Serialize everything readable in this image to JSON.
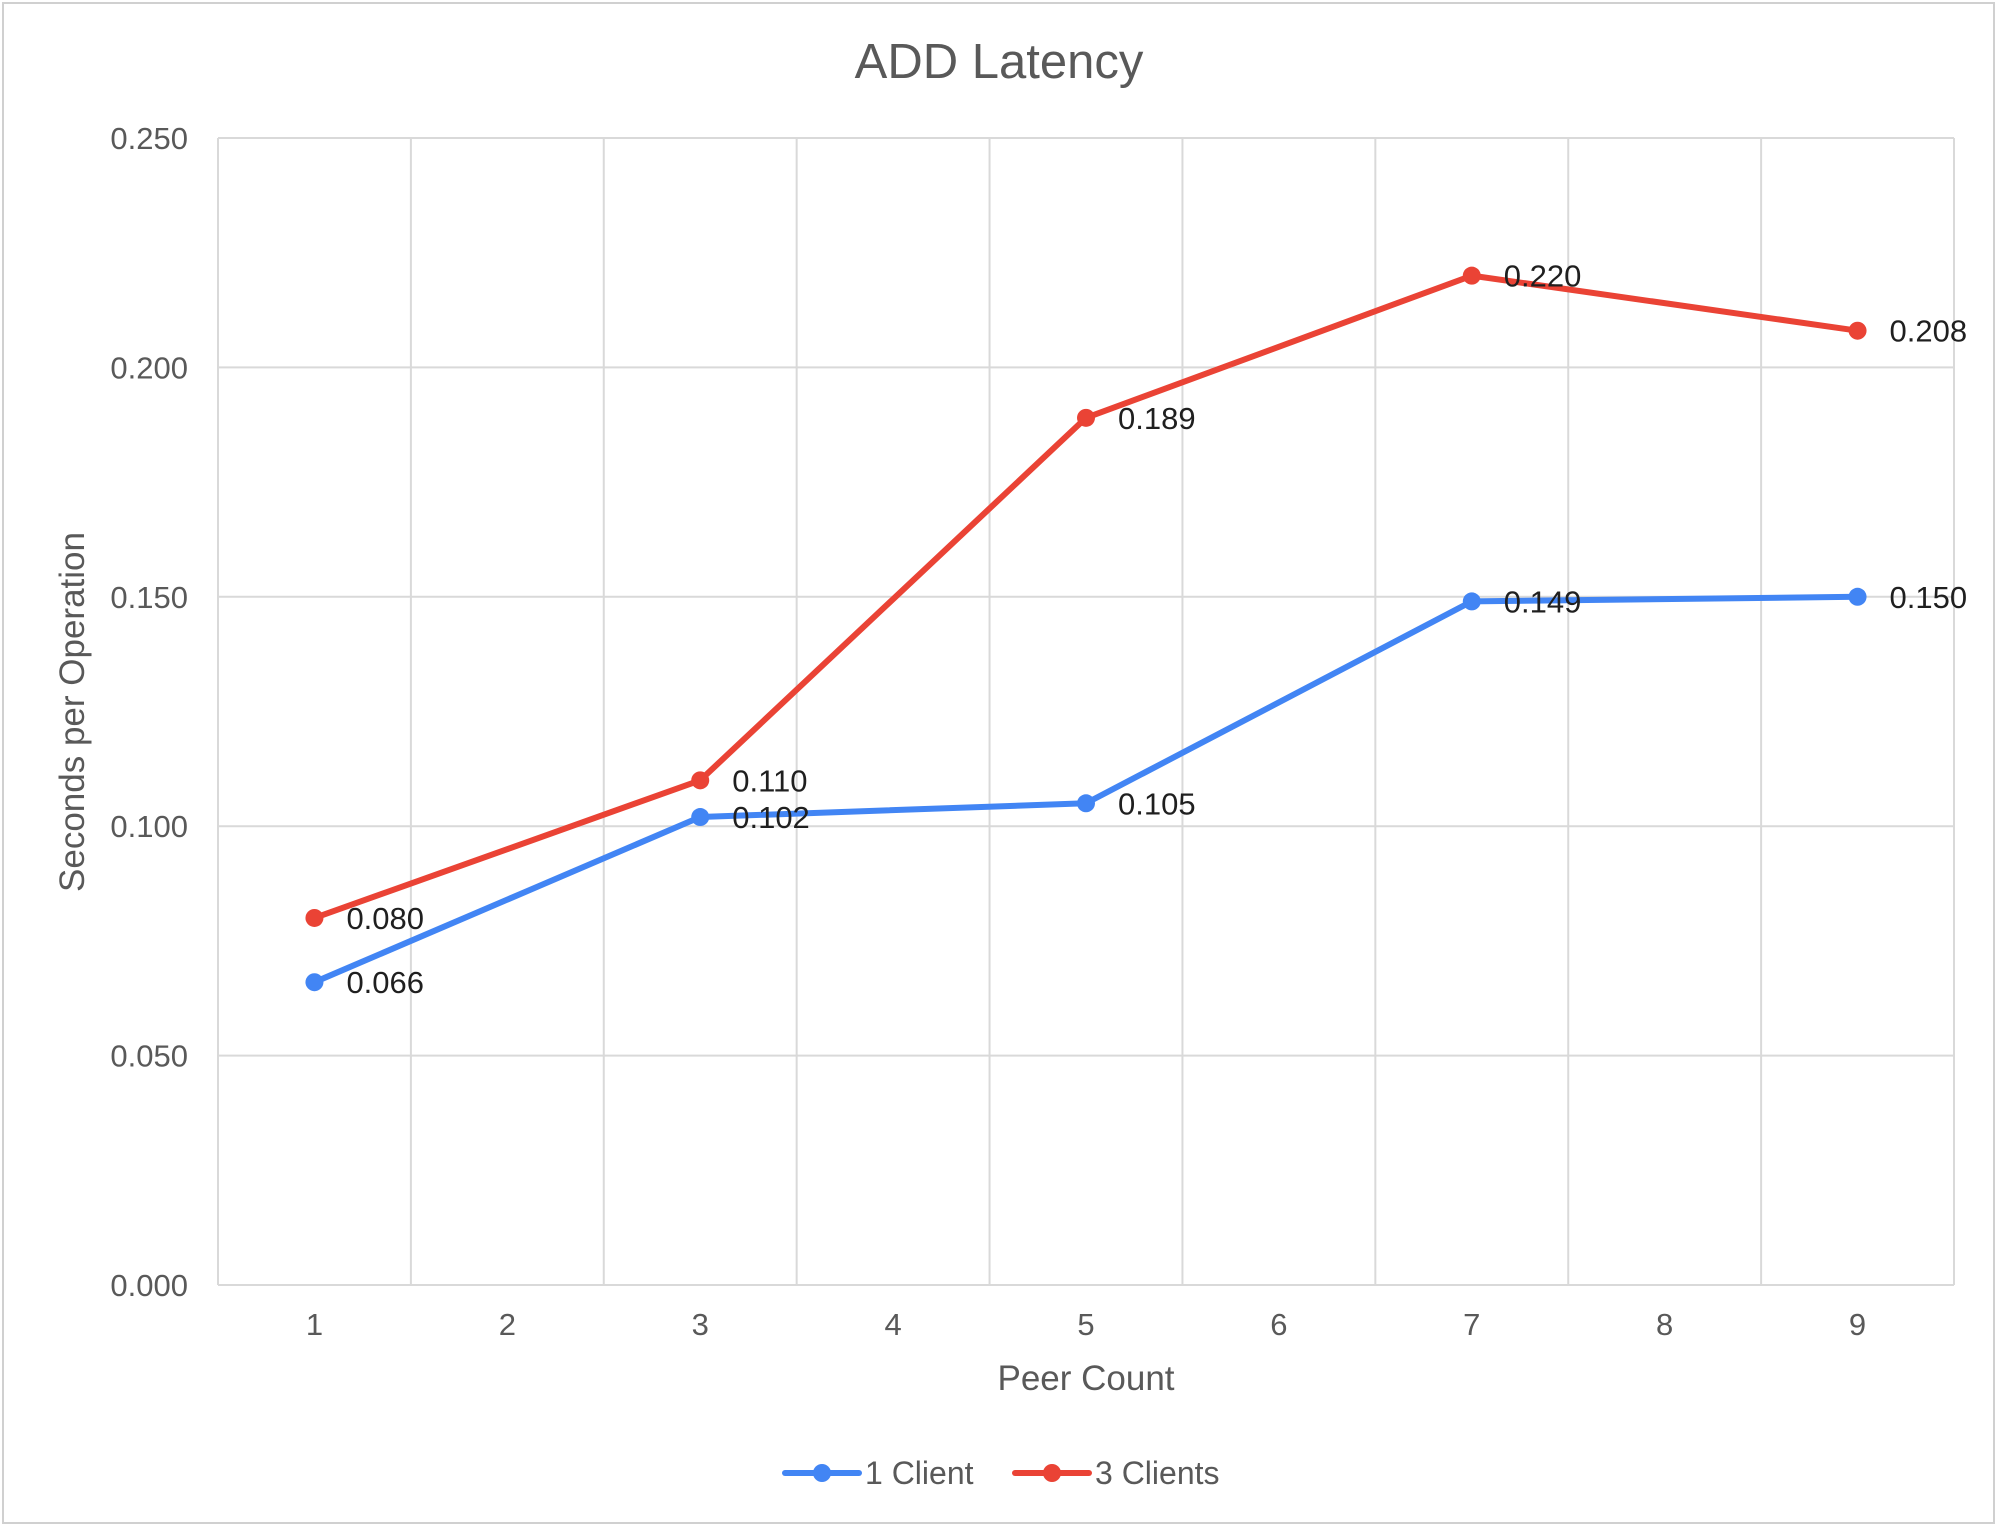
{
  "chart_data": {
    "type": "line",
    "title": "ADD Latency",
    "xlabel": "Peer Count",
    "ylabel": "Seconds per Operation",
    "x_ticks": [
      "1",
      "2",
      "3",
      "4",
      "5",
      "6",
      "7",
      "8",
      "9"
    ],
    "xlim": [
      0.5,
      9.5
    ],
    "ylim": [
      0,
      0.25
    ],
    "y_ticks": [
      "0.000",
      "0.050",
      "0.100",
      "0.150",
      "0.200",
      "0.250"
    ],
    "grid": true,
    "legend_position": "bottom",
    "series": [
      {
        "name": "1 Client",
        "color": "#4285f4",
        "x": [
          1,
          3,
          5,
          7,
          9
        ],
        "values": [
          0.066,
          0.102,
          0.105,
          0.149,
          0.15
        ],
        "labels": [
          "0.066",
          "0.102",
          "0.105",
          "0.149",
          "0.150"
        ]
      },
      {
        "name": "3 Clients",
        "color": "#ea4335",
        "x": [
          1,
          3,
          5,
          7,
          9
        ],
        "values": [
          0.08,
          0.11,
          0.189,
          0.22,
          0.208
        ],
        "labels": [
          "0.080",
          "0.110",
          "0.189",
          "0.220",
          "0.208"
        ]
      }
    ]
  }
}
